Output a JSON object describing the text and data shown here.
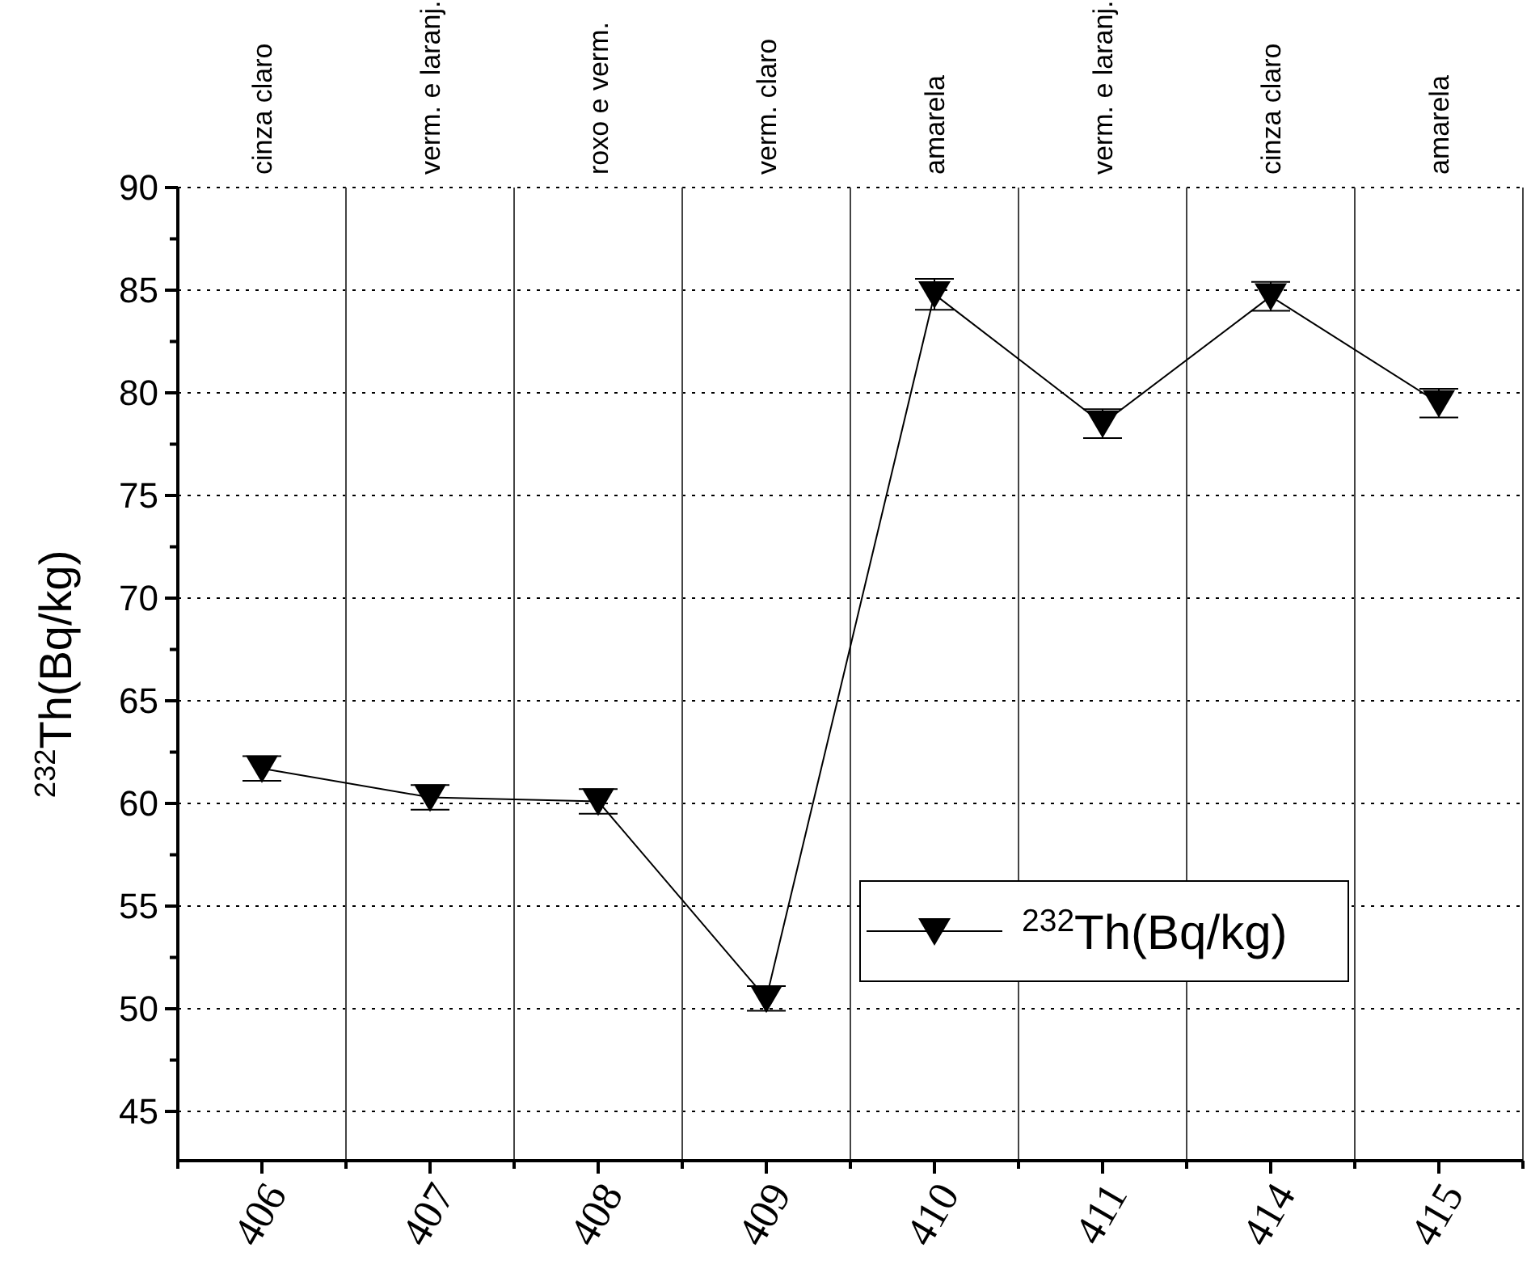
{
  "chart_data": {
    "type": "line",
    "ylabel": "$^{232}$Th(Bq/kg)",
    "categories": [
      "406",
      "407",
      "408",
      "409",
      "410",
      "411",
      "414",
      "415"
    ],
    "series": [
      {
        "name": "$^{232}$Th(Bq/kg)",
        "color": "#000000",
        "values": [
          61.7,
          60.3,
          60.1,
          50.5,
          84.8,
          78.5,
          84.7,
          79.5
        ],
        "errors": [
          0.6,
          0.6,
          0.6,
          0.6,
          0.75,
          0.7,
          0.7,
          0.7
        ]
      }
    ],
    "annotations": [
      "cinza claro",
      "verm. e laranj.",
      "roxo e verm.",
      "verm. claro",
      "amarela",
      "verm. e laranj.",
      "cinza claro",
      "amarela"
    ],
    "ylim": [
      42.6,
      90
    ],
    "yticks": [
      {
        "value": 45,
        "label": "45"
      },
      {
        "value": 47.5,
        "label": null
      },
      {
        "value": 50,
        "label": "50"
      },
      {
        "value": 52.5,
        "label": null
      },
      {
        "value": 55,
        "label": "55"
      },
      {
        "value": 57.5,
        "label": null
      },
      {
        "value": 60,
        "label": "60"
      },
      {
        "value": 62.5,
        "label": null
      },
      {
        "value": 65,
        "label": "65"
      },
      {
        "value": 67.5,
        "label": null
      },
      {
        "value": 70,
        "label": "70"
      },
      {
        "value": 72.5,
        "label": null
      },
      {
        "value": 75,
        "label": "75"
      },
      {
        "value": 77.5,
        "label": null
      },
      {
        "value": 80,
        "label": "80"
      },
      {
        "value": 82.5,
        "label": null
      },
      {
        "value": 85,
        "label": "85"
      },
      {
        "value": 87.5,
        "label": null
      },
      {
        "value": 90,
        "label": "90"
      }
    ],
    "grid": true,
    "legend": "bottom right",
    "marker": "triangle",
    "line_style": "solid"
  }
}
